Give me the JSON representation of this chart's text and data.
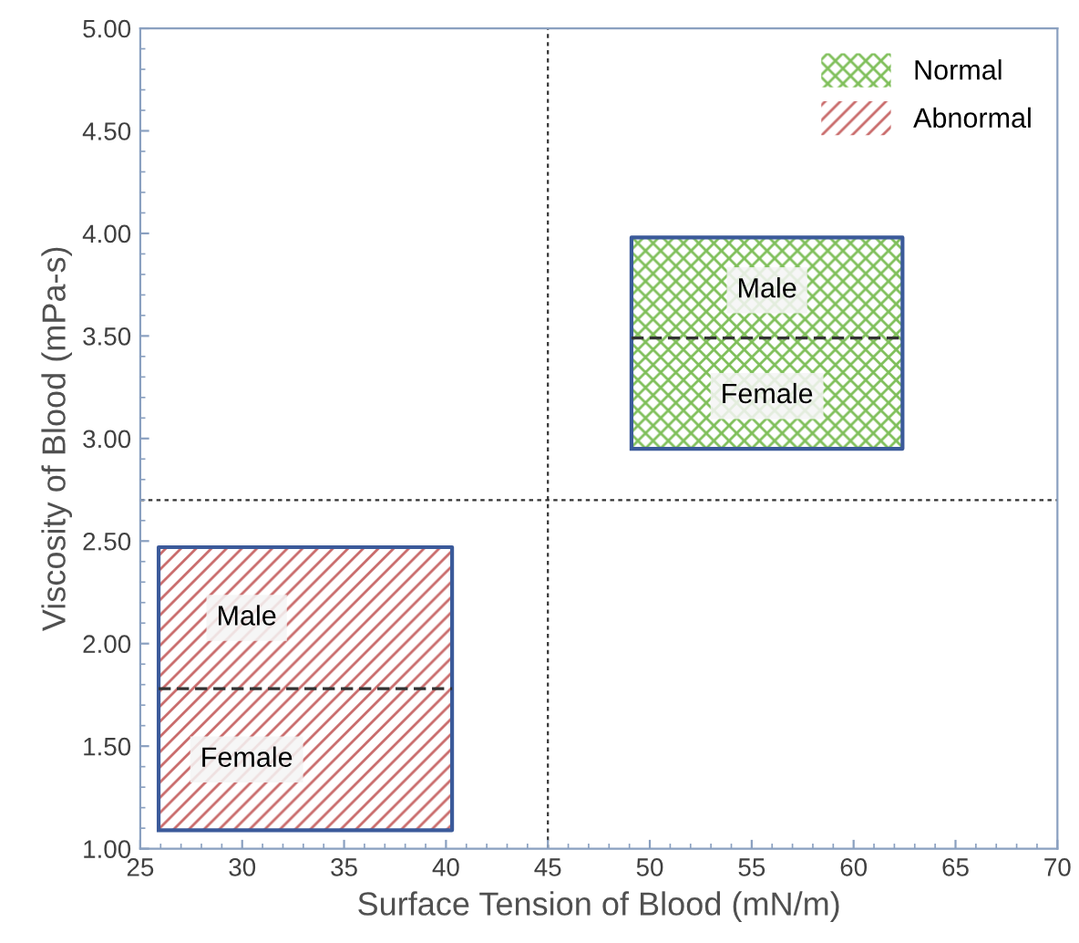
{
  "chart_data": {
    "type": "line",
    "xlabel": "Surface Tension of Blood (mN/m)",
    "ylabel": "Viscosity of Blood (mPa-s)",
    "series": [
      {
        "name": "Normal",
        "color": "#7fbf5a",
        "x": [
          49.1,
          62.4
        ],
        "values": [
          null,
          null
        ],
        "lower": [
          2.95,
          2.95
        ],
        "upper": [
          3.98,
          3.98
        ]
      },
      {
        "name": "Abnormal",
        "color": "#c96a6a",
        "x": [
          25.9,
          40.3
        ],
        "values": [
          null,
          null
        ],
        "lower": [
          1.09,
          1.09
        ],
        "upper": [
          2.47,
          2.47
        ]
      },
      {
        "color": "#333333",
        "x": [
          49.1,
          62.4
        ],
        "values": [
          3.49,
          3.49
        ]
      },
      {
        "color": "#333333",
        "x": [
          25.9,
          40.3
        ],
        "values": [
          1.78,
          1.78
        ]
      }
    ],
    "line_style": "dashed",
    "marker": "none",
    "annotations": [
      "Male",
      "Female",
      "Male",
      "Female"
    ],
    "ref_lines": [
      {
        "axis": "x",
        "value": 45,
        "line_style": "dotted"
      },
      {
        "axis": "y",
        "value": 2.7,
        "line_style": "dotted"
      }
    ],
    "xlim": [
      25,
      70
    ],
    "ylim": [
      1.0,
      5.0
    ],
    "xticks": [
      25,
      30,
      35,
      40,
      45,
      50,
      55,
      60,
      65,
      70
    ],
    "yticks": [
      {
        "value": 1.0,
        "label": "1.00"
      },
      {
        "value": 1.5,
        "label": "1.50"
      },
      {
        "value": 2.0,
        "label": "2.00"
      },
      {
        "value": 2.5,
        "label": "2.50"
      },
      {
        "value": 3.0,
        "label": "3.00"
      },
      {
        "value": 3.5,
        "label": "3.50"
      },
      {
        "value": 4.0,
        "label": "4.00"
      },
      {
        "value": 4.5,
        "label": "4.50"
      },
      {
        "value": 5.0,
        "label": "5.00"
      }
    ],
    "grid": false,
    "legend": "top right"
  }
}
